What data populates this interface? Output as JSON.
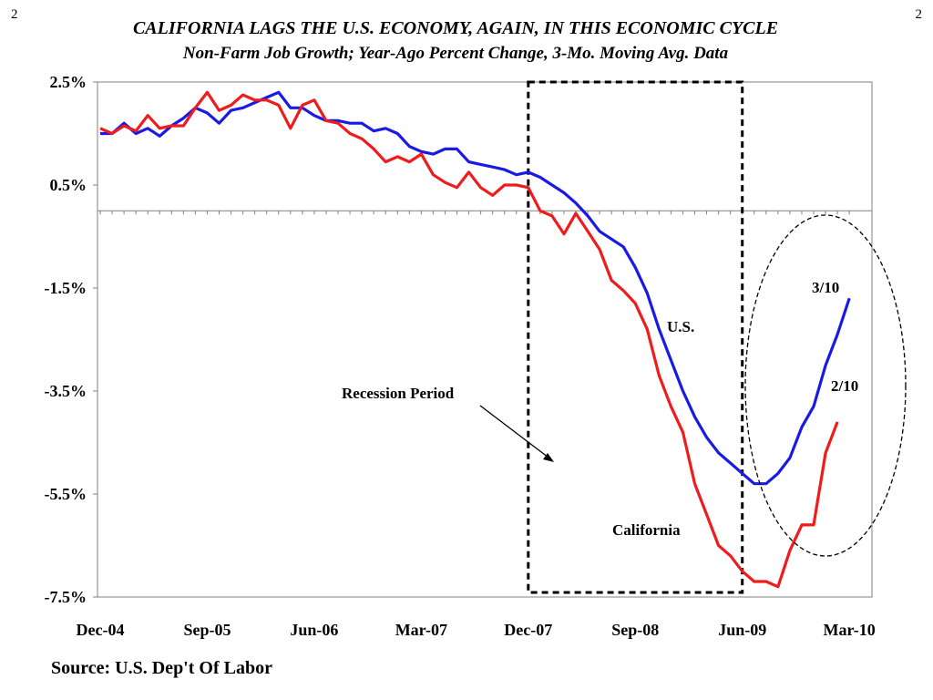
{
  "page_numbers": {
    "left": "2",
    "right": "2"
  },
  "title": "CALIFORNIA LAGS THE U.S. ECONOMY, AGAIN, IN THIS ECONOMIC CYCLE",
  "subtitle": "Non-Farm Job Growth; Year-Ago Percent Change, 3-Mo. Moving Avg. Data",
  "source": "Source: U.S. Dep't Of Labor",
  "colors": {
    "us": "#1a1ae6",
    "california": "#ee1c1c"
  },
  "chart_data": {
    "type": "line",
    "title": "CALIFORNIA LAGS THE U.S. ECONOMY, AGAIN, IN THIS ECONOMIC CYCLE",
    "subtitle": "Non-Farm Job Growth; Year-Ago Percent Change, 3-Mo. Moving Avg. Data",
    "xlabel": "",
    "ylabel": "",
    "ylim": [
      -7.5,
      2.5
    ],
    "xlim": [
      "Dec-04",
      "Mar-10"
    ],
    "yticks": [
      "2.5%",
      "0.5%",
      "-1.5%",
      "-3.5%",
      "-5.5%",
      "-7.5%"
    ],
    "ytick_values": [
      2.5,
      0.5,
      -1.5,
      -3.5,
      -5.5,
      -7.5
    ],
    "xticks": [
      "Dec-04",
      "Sep-05",
      "Jun-06",
      "Mar-07",
      "Dec-07",
      "Sep-08",
      "Jun-09",
      "Mar-10"
    ],
    "x_start_month": "Dec-04",
    "recession_period": {
      "label": "Recession Period",
      "start": "Dec-07",
      "end": "Jun-09"
    },
    "grid": false,
    "zero_line": true,
    "annotations": [
      {
        "text": "U.S.",
        "series": "U.S."
      },
      {
        "text": "California",
        "series": "California"
      },
      {
        "text": "3/10",
        "series": "U.S."
      },
      {
        "text": "2/10",
        "series": "California"
      }
    ],
    "series": [
      {
        "name": "U.S.",
        "values": [
          1.5,
          1.5,
          1.7,
          1.5,
          1.6,
          1.45,
          1.65,
          1.8,
          2.0,
          1.9,
          1.7,
          1.95,
          2.0,
          2.1,
          2.2,
          2.3,
          2.0,
          2.0,
          1.85,
          1.75,
          1.75,
          1.7,
          1.7,
          1.55,
          1.6,
          1.5,
          1.25,
          1.15,
          1.1,
          1.2,
          1.2,
          0.95,
          0.9,
          0.85,
          0.8,
          0.7,
          0.75,
          0.65,
          0.5,
          0.35,
          0.15,
          -0.1,
          -0.4,
          -0.55,
          -0.7,
          -1.1,
          -1.6,
          -2.3,
          -2.9,
          -3.5,
          -4.0,
          -4.4,
          -4.7,
          -4.9,
          -5.1,
          -5.3,
          -5.3,
          -5.1,
          -4.8,
          -4.2,
          -3.8,
          -3.0,
          -2.4,
          -1.7
        ]
      },
      {
        "name": "California",
        "values": [
          1.6,
          1.5,
          1.65,
          1.55,
          1.85,
          1.6,
          1.65,
          1.65,
          2.0,
          2.3,
          1.95,
          2.05,
          2.25,
          2.15,
          2.15,
          2.05,
          1.6,
          2.05,
          2.15,
          1.75,
          1.7,
          1.5,
          1.4,
          1.2,
          0.95,
          1.05,
          0.95,
          1.1,
          0.7,
          0.55,
          0.45,
          0.75,
          0.45,
          0.3,
          0.5,
          0.5,
          0.45,
          0.0,
          -0.1,
          -0.45,
          -0.05,
          -0.4,
          -0.75,
          -1.35,
          -1.55,
          -1.8,
          -2.3,
          -3.2,
          -3.8,
          -4.3,
          -5.3,
          -5.9,
          -6.5,
          -6.7,
          -7.0,
          -7.2,
          -7.2,
          -7.3,
          -6.6,
          -6.1,
          -6.1,
          -4.7,
          -4.1
        ]
      }
    ]
  },
  "annotation_labels": {
    "us": "U.S.",
    "california": "California",
    "us_latest": "3/10",
    "ca_latest": "2/10",
    "recession": "Recession Period"
  }
}
